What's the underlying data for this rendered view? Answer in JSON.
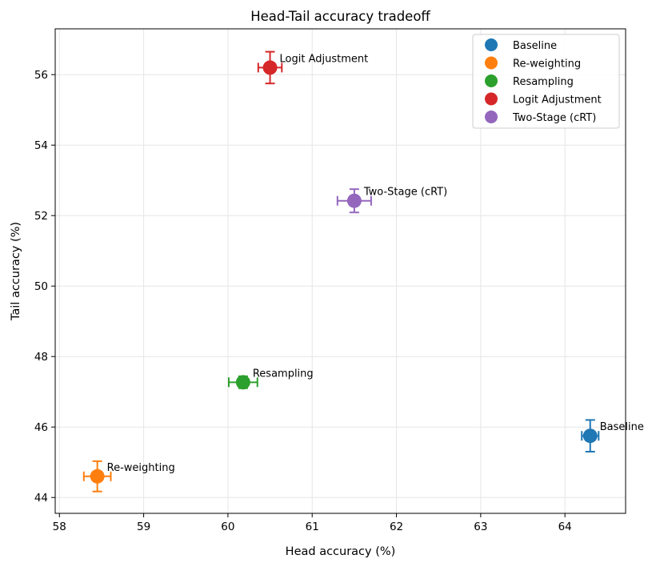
{
  "chart_data": {
    "type": "scatter",
    "title": "Head-Tail accuracy tradeoff",
    "xlabel": "Head accuracy (%)",
    "ylabel": "Tail accuracy (%)",
    "xlim": [
      57.95,
      64.72
    ],
    "ylim": [
      43.55,
      57.3
    ],
    "xticks": [
      "58",
      "59",
      "60",
      "61",
      "62",
      "63",
      "64"
    ],
    "yticks": [
      "44",
      "46",
      "48",
      "50",
      "52",
      "54",
      "56"
    ],
    "grid": true,
    "legend_position": "top-right",
    "series": [
      {
        "name": "Baseline",
        "color": "#1f77b4",
        "x": 64.3,
        "y": 45.75,
        "xerr": 0.1,
        "yerr": 0.45,
        "annotation": "Baseline"
      },
      {
        "name": "Re-weighting",
        "color": "#ff7f0e",
        "x": 58.45,
        "y": 44.6,
        "xerr": 0.16,
        "yerr": 0.43,
        "annotation": "Re-weighting"
      },
      {
        "name": "Resampling",
        "color": "#2ca02c",
        "x": 60.18,
        "y": 47.27,
        "xerr": 0.17,
        "yerr": 0.17,
        "annotation": "Resampling"
      },
      {
        "name": "Logit Adjustment",
        "color": "#d62728",
        "x": 60.5,
        "y": 56.2,
        "xerr": 0.14,
        "yerr": 0.45,
        "annotation": "Logit Adjustment"
      },
      {
        "name": "Two-Stage (cRT)",
        "color": "#9467bd",
        "x": 61.5,
        "y": 52.42,
        "xerr": 0.2,
        "yerr": 0.33,
        "annotation": "Two-Stage (cRT)"
      }
    ]
  }
}
